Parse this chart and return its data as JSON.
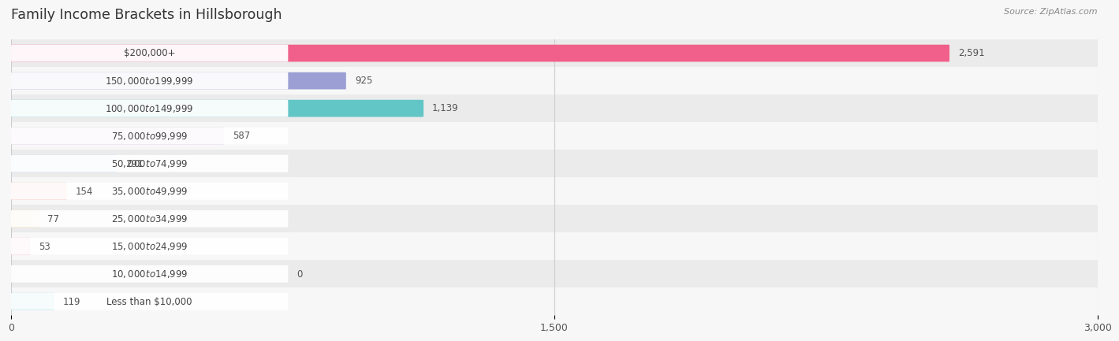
{
  "title": "Family Income Brackets in Hillsborough",
  "source_text": "Source: ZipAtlas.com",
  "categories": [
    "Less than $10,000",
    "$10,000 to $14,999",
    "$15,000 to $24,999",
    "$25,000 to $34,999",
    "$35,000 to $49,999",
    "$50,000 to $74,999",
    "$75,000 to $99,999",
    "$100,000 to $149,999",
    "$150,000 to $199,999",
    "$200,000+"
  ],
  "values": [
    119,
    0,
    53,
    77,
    154,
    291,
    587,
    1139,
    925,
    2591
  ],
  "bar_colors": [
    "#62c5c6",
    "#9b9fd4",
    "#f4a0b5",
    "#f7c98a",
    "#f0a090",
    "#a8c8e8",
    "#c9b0d8",
    "#62c5c6",
    "#9b9fd4",
    "#f0608a"
  ],
  "xlim": [
    0,
    3000
  ],
  "xticks": [
    0,
    1500,
    3000
  ],
  "bar_height": 0.62,
  "background_color": "#f7f7f7",
  "row_bg_light": "#f0f0f0",
  "row_bg_dark": "#e8e8e8",
  "label_color": "#444444",
  "value_color": "#555555",
  "title_color": "#333333",
  "title_fontsize": 12.5,
  "label_fontsize": 8.5,
  "value_fontsize": 8.5,
  "source_fontsize": 8
}
